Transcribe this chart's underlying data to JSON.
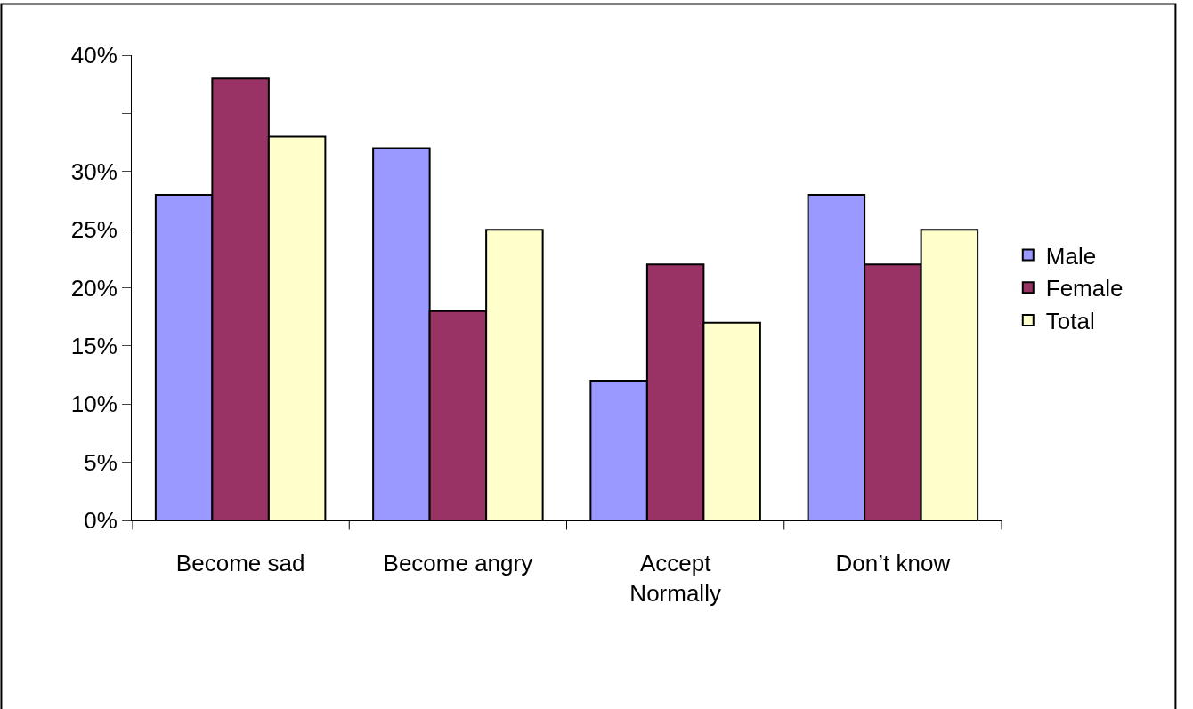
{
  "chart_data": {
    "type": "bar",
    "categories": [
      "Become sad",
      "Become angry",
      "Accept Normally",
      "Don’t know"
    ],
    "series": [
      {
        "name": "Male",
        "color": "#9999ff",
        "values": [
          28,
          32,
          12,
          28
        ]
      },
      {
        "name": "Female",
        "color": "#993366",
        "values": [
          38,
          18,
          22,
          22
        ]
      },
      {
        "name": "Total",
        "color": "#ffffcc",
        "values": [
          33,
          25,
          17,
          25
        ]
      }
    ],
    "ylim": [
      0,
      40
    ],
    "yticks": [
      {
        "value": 0,
        "label": "0%"
      },
      {
        "value": 5,
        "label": "5%"
      },
      {
        "value": 10,
        "label": "10%"
      },
      {
        "value": 15,
        "label": "15%"
      },
      {
        "value": 20,
        "label": "20%"
      },
      {
        "value": 25,
        "label": "25%"
      },
      {
        "value": 30,
        "label": "30%"
      },
      {
        "value": 35,
        "label": null
      },
      {
        "value": 40,
        "label": "40%"
      }
    ],
    "grid": false,
    "legend": "right"
  }
}
